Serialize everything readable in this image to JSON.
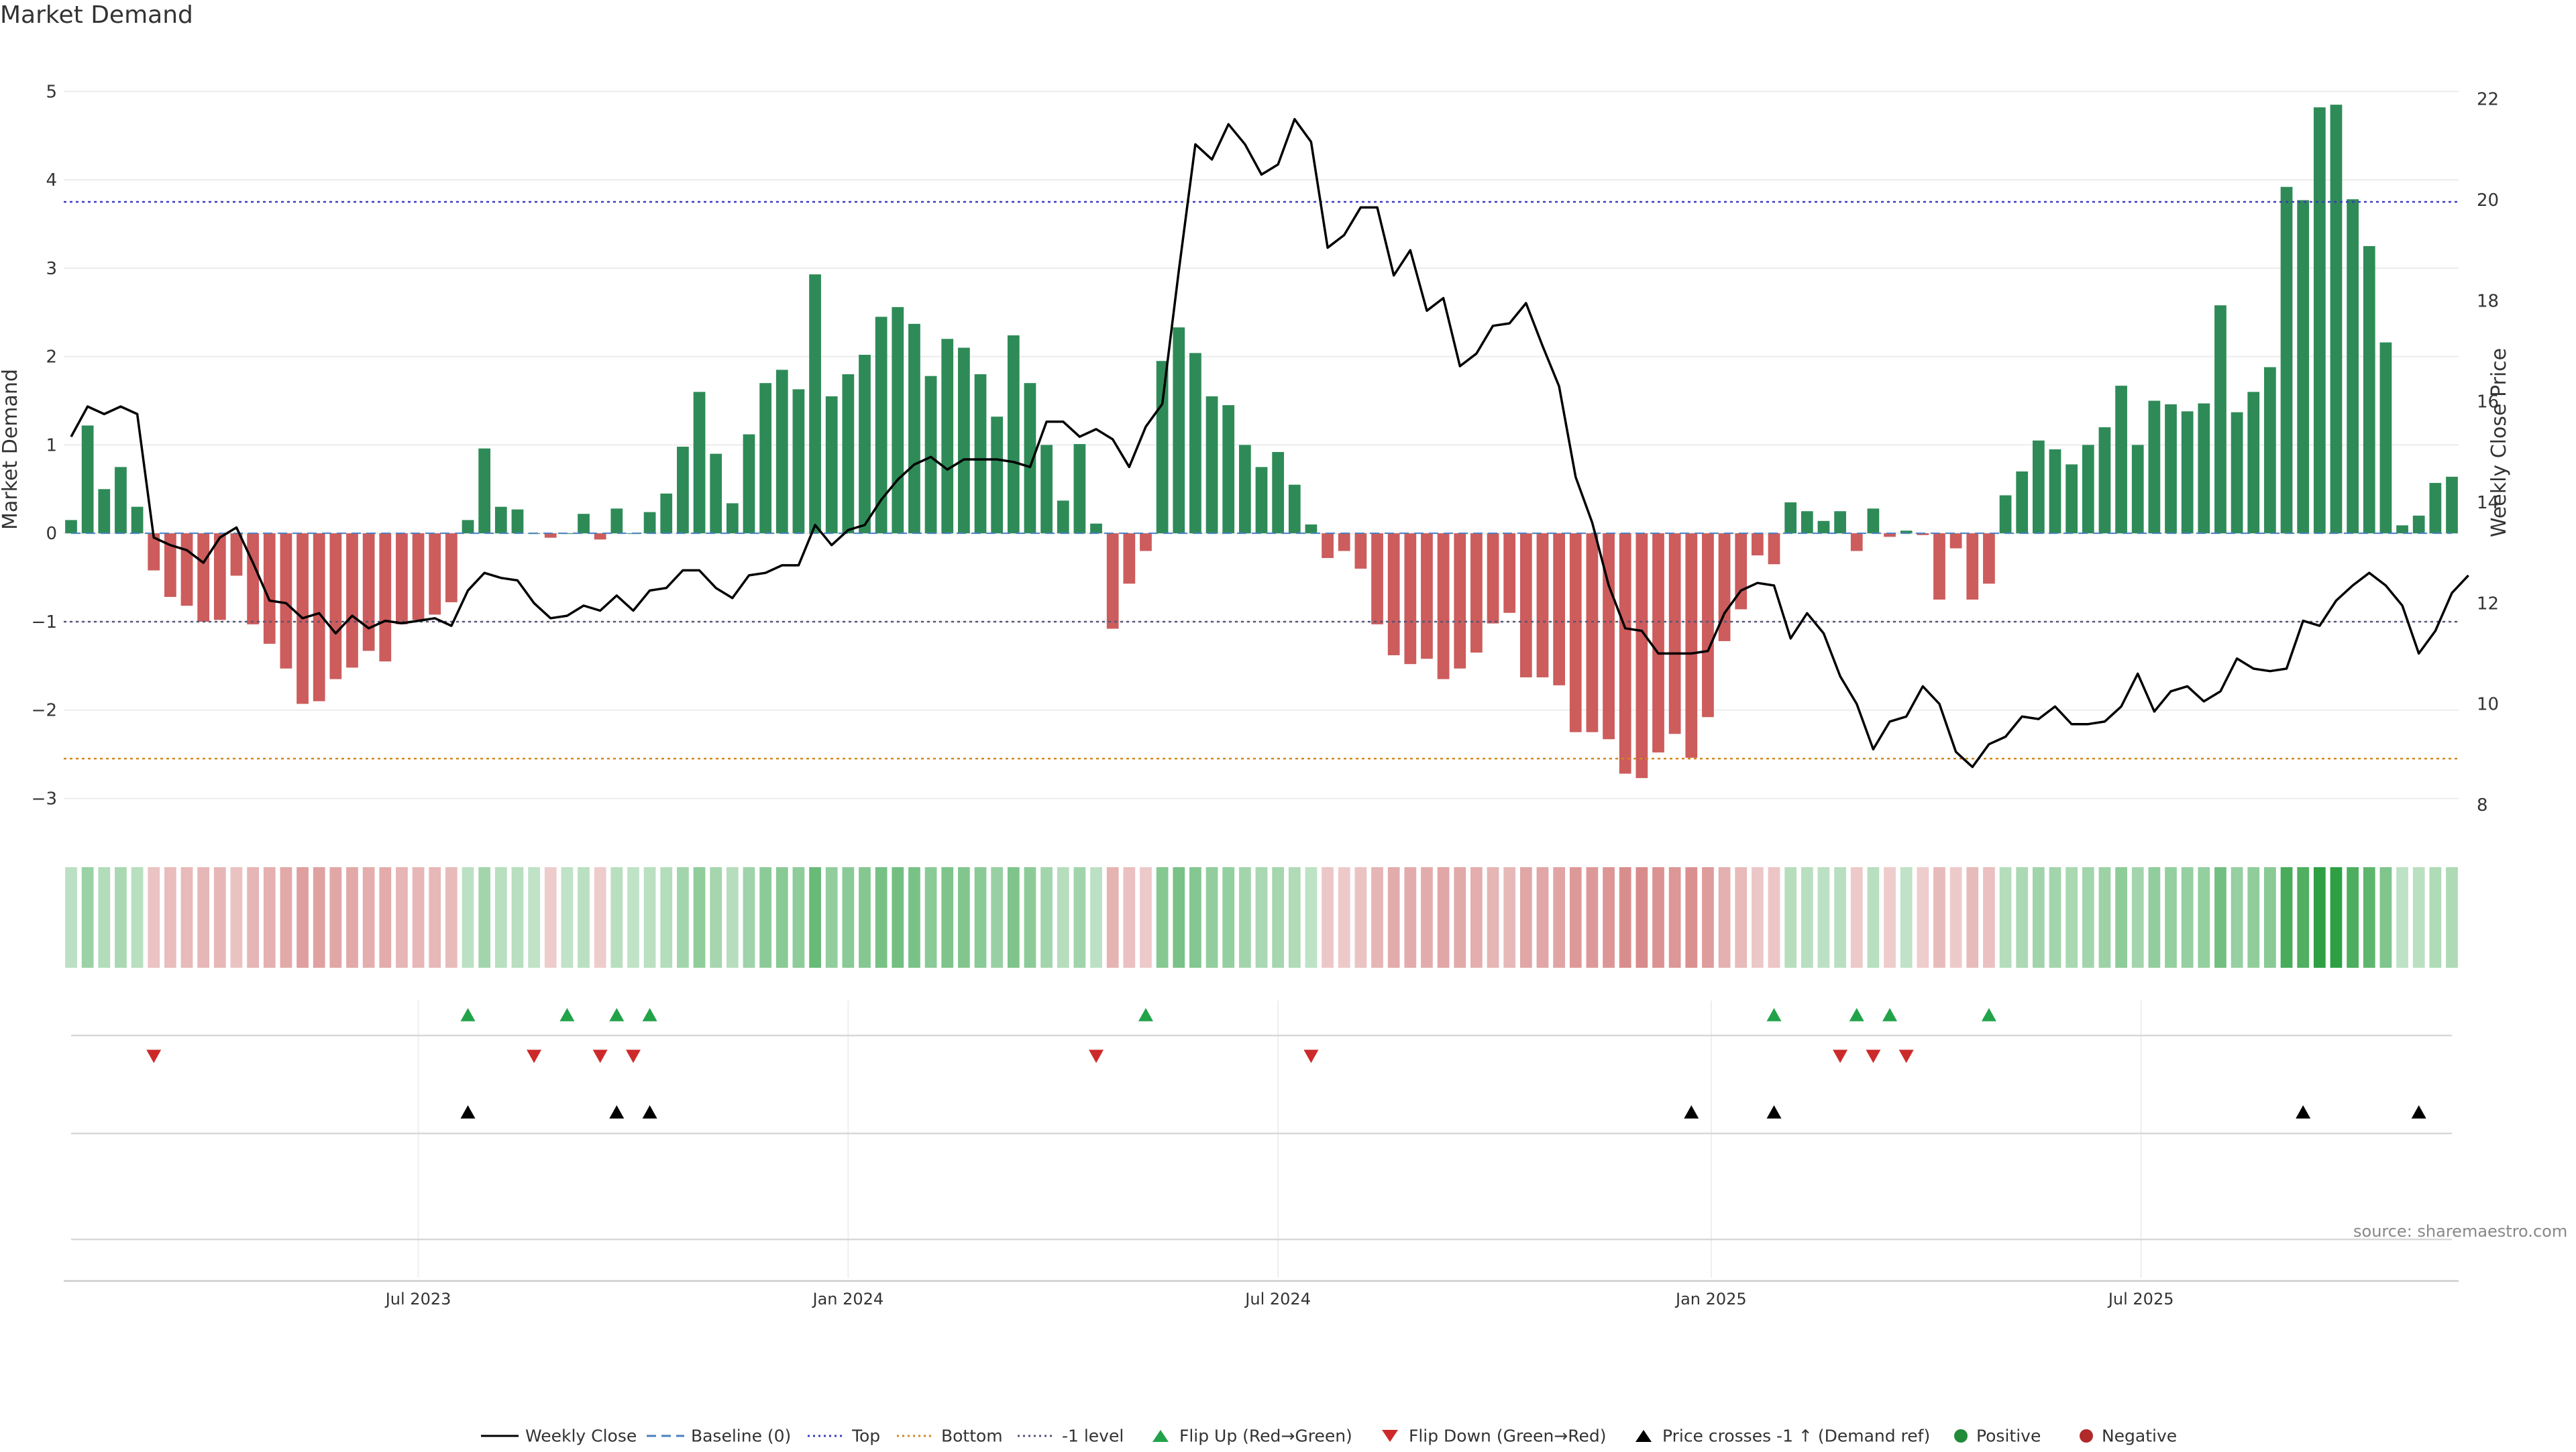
{
  "title": "Market Demand",
  "source": "source: sharemaestro.com",
  "colors": {
    "positive": "#2e8b57",
    "negative": "#cd5c5c",
    "price": "#000000",
    "top": "#3b3bbf",
    "bottom": "#d2871f",
    "minus1": "#555577",
    "flip_up": "#22a34a",
    "flip_down": "#cc2a2a",
    "cross": "#000000",
    "heat_pos": "#2ea043",
    "heat_neg": "#c85a5a"
  },
  "chart_data": {
    "type": "bar",
    "title": "Market Demand",
    "ylabel": "Market Demand",
    "y2label": "Weekly Close Price",
    "ylim": [
      -3.3,
      5.2
    ],
    "y2lim": [
      7.6,
      22.5
    ],
    "yticks": [
      "5",
      "4",
      "3",
      "2",
      "1",
      "0",
      "−1",
      "−2",
      "−3"
    ],
    "y2ticks": [
      "22",
      "20",
      "18",
      "16",
      "14",
      "12",
      "10",
      "8"
    ],
    "xticks": [
      "Jul 2023",
      "Jan 2024",
      "Jul 2024",
      "Jan 2025",
      "Jul 2025"
    ],
    "reference_lines": {
      "top": 3.75,
      "bottom": -2.55,
      "minus1": -1,
      "baseline": 0
    },
    "demand": [
      0.15,
      1.22,
      0.5,
      0.75,
      0.3,
      -0.42,
      -0.72,
      -0.82,
      -1.0,
      -0.98,
      -0.48,
      -1.03,
      -1.25,
      -1.53,
      -1.93,
      -1.9,
      -1.65,
      -1.52,
      -1.33,
      -1.45,
      -1.03,
      -0.98,
      -0.92,
      -0.78,
      0.15,
      0.96,
      0.3,
      0.27,
      0.0,
      -0.05,
      0.0,
      0.22,
      -0.07,
      0.28,
      0.0,
      0.24,
      0.45,
      0.98,
      1.6,
      0.9,
      0.34,
      1.12,
      1.7,
      1.85,
      1.63,
      2.93,
      1.55,
      1.8,
      2.02,
      2.45,
      2.56,
      2.37,
      1.78,
      2.2,
      2.1,
      1.8,
      1.32,
      2.24,
      1.7,
      1.0,
      0.37,
      1.01,
      0.11,
      -1.08,
      -0.57,
      -0.2,
      1.95,
      2.33,
      2.04,
      1.55,
      1.45,
      1.0,
      0.75,
      0.92,
      0.55,
      0.1,
      -0.28,
      -0.2,
      -0.4,
      -1.03,
      -1.38,
      -1.48,
      -1.42,
      -1.65,
      -1.53,
      -1.35,
      -1.02,
      -0.9,
      -1.63,
      -1.63,
      -1.72,
      -2.25,
      -2.25,
      -2.33,
      -2.72,
      -2.77,
      -2.48,
      -2.27,
      -2.54,
      -2.08,
      -1.22,
      -0.86,
      -0.25,
      -0.35,
      0.35,
      0.25,
      0.14,
      0.25,
      -0.2,
      0.28,
      -0.04,
      0.03,
      -0.02,
      -0.75,
      -0.17,
      -0.75,
      -0.57,
      0.43,
      0.7,
      1.05,
      0.95,
      0.78,
      1.0,
      1.2,
      1.67,
      1.0,
      1.5,
      1.46,
      1.38,
      1.47,
      2.58,
      1.37,
      1.6,
      1.88,
      3.92,
      3.77,
      4.82,
      4.85,
      3.78,
      3.25,
      2.16,
      0.09,
      0.2,
      0.57,
      0.64
    ],
    "price": [
      15.3,
      15.9,
      15.75,
      15.9,
      15.75,
      13.3,
      13.15,
      13.05,
      12.8,
      13.3,
      13.5,
      12.8,
      12.05,
      12.0,
      11.7,
      11.8,
      11.4,
      11.75,
      11.5,
      11.65,
      11.6,
      11.65,
      11.7,
      11.55,
      12.25,
      12.6,
      12.5,
      12.45,
      12.0,
      11.7,
      11.75,
      11.95,
      11.85,
      12.15,
      11.85,
      12.25,
      12.3,
      12.65,
      12.65,
      12.3,
      12.1,
      12.55,
      12.6,
      12.75,
      12.75,
      13.55,
      13.15,
      13.45,
      13.55,
      14.05,
      14.45,
      14.75,
      14.9,
      14.65,
      14.85,
      14.85,
      14.85,
      14.8,
      14.7,
      15.6,
      15.6,
      15.3,
      15.45,
      15.25,
      14.7,
      15.5,
      15.95,
      18.6,
      21.1,
      20.8,
      21.5,
      21.1,
      20.5,
      20.7,
      21.6,
      21.15,
      19.05,
      19.3,
      19.85,
      19.85,
      18.5,
      19.0,
      17.8,
      18.05,
      16.7,
      16.95,
      17.5,
      17.55,
      17.95,
      17.1,
      16.3,
      14.5,
      13.6,
      12.35,
      11.5,
      11.45,
      11.0,
      11.0,
      11.0,
      11.05,
      11.8,
      12.25,
      12.4,
      12.35,
      11.3,
      11.8,
      11.4,
      10.55,
      10.0,
      9.1,
      9.65,
      9.75,
      10.35,
      10.0,
      9.05,
      8.75,
      9.2,
      9.35,
      9.75,
      9.7,
      9.95,
      9.6,
      9.6,
      9.65,
      9.95,
      10.6,
      9.85,
      10.25,
      10.35,
      10.05,
      10.25,
      10.9,
      10.7,
      10.65,
      10.7,
      11.65,
      11.55,
      12.05,
      12.35,
      12.6,
      12.35,
      11.95,
      11.0,
      11.45,
      12.2,
      12.55
    ],
    "flip_up_idx": [
      24,
      30,
      33,
      35,
      65,
      103,
      108,
      110,
      116
    ],
    "flip_down_idx": [
      5,
      28,
      32,
      34,
      62,
      75,
      107,
      109,
      111
    ],
    "price_cross_idx": [
      24,
      33,
      35,
      98,
      103,
      135,
      142
    ],
    "series": [
      {
        "name": "Weekly Close"
      },
      {
        "name": "Baseline (0)"
      },
      {
        "name": "Top"
      },
      {
        "name": "Bottom"
      },
      {
        "name": "-1 level"
      },
      {
        "name": "Flip Up (Red→Green)"
      },
      {
        "name": "Flip Down (Green→Red)"
      },
      {
        "name": "Price crosses -1 ↑ (Demand ref)"
      },
      {
        "name": "Positive"
      },
      {
        "name": "Negative"
      }
    ]
  },
  "legend": [
    "Weekly Close",
    "Baseline (0)",
    "Top",
    "Bottom",
    "-1 level",
    "Flip Up (Red→Green)",
    "Flip Down (Green→Red)",
    "Price crosses -1 ↑ (Demand ref)",
    "Positive",
    "Negative"
  ]
}
